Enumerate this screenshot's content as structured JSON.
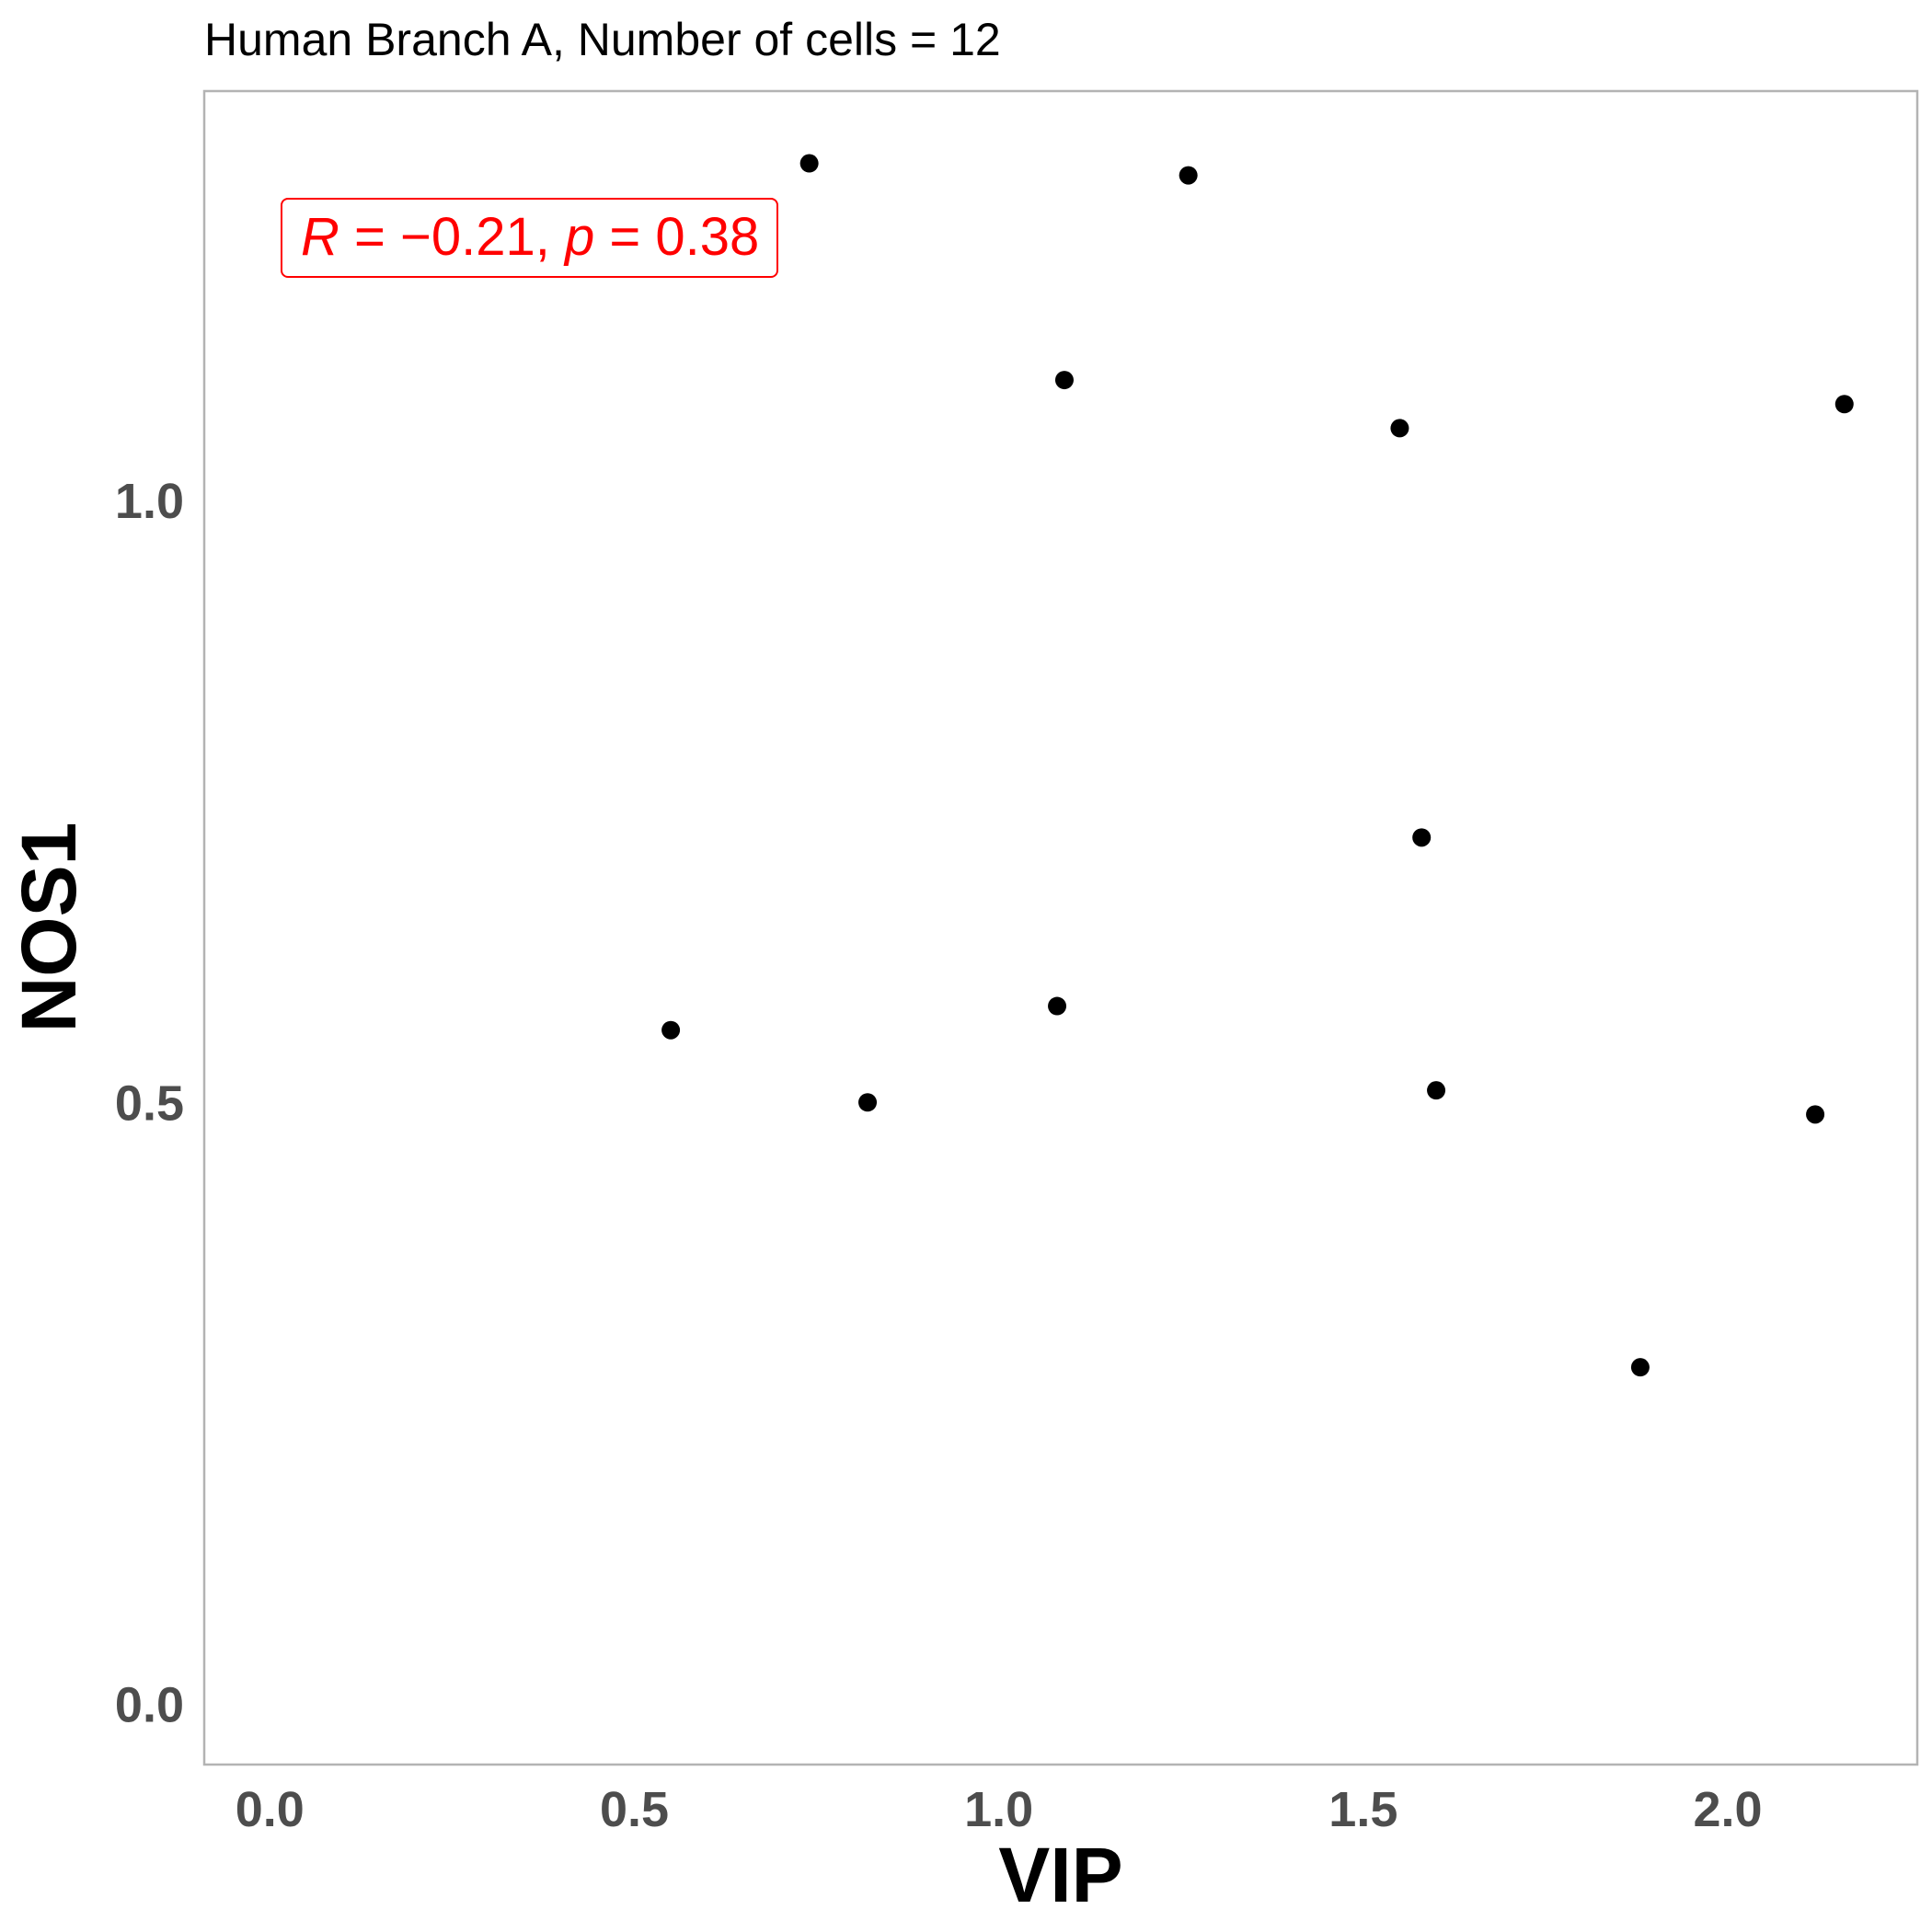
{
  "chart_data": {
    "type": "scatter",
    "title": "Human Branch A, Number of cells = 12",
    "xlabel": "VIP",
    "ylabel": "NOS1",
    "xlim": [
      -0.09,
      2.26
    ],
    "ylim": [
      -0.05,
      1.34
    ],
    "x_ticks": [
      0.0,
      0.5,
      1.0,
      1.5,
      2.0
    ],
    "x_tick_labels": [
      "0.0",
      "0.5",
      "1.0",
      "1.5",
      "2.0"
    ],
    "y_ticks": [
      0.0,
      0.5,
      1.0
    ],
    "y_tick_labels": [
      "0.0",
      "0.5",
      "1.0"
    ],
    "grid": false,
    "point_color": "#000000",
    "annotation": {
      "r_label": "R",
      "r_value": "−0.21",
      "p_label": "p",
      "p_value": "0.38",
      "color": "#ff0000",
      "position": "top-left"
    },
    "points": [
      {
        "x": 0.74,
        "y": 1.28
      },
      {
        "x": 1.26,
        "y": 1.27
      },
      {
        "x": 1.09,
        "y": 1.1
      },
      {
        "x": 1.55,
        "y": 1.06
      },
      {
        "x": 2.16,
        "y": 1.08
      },
      {
        "x": 1.58,
        "y": 0.72
      },
      {
        "x": 0.55,
        "y": 0.56
      },
      {
        "x": 1.08,
        "y": 0.58
      },
      {
        "x": 0.82,
        "y": 0.5
      },
      {
        "x": 1.6,
        "y": 0.51
      },
      {
        "x": 2.12,
        "y": 0.49
      },
      {
        "x": 1.88,
        "y": 0.28
      }
    ]
  }
}
